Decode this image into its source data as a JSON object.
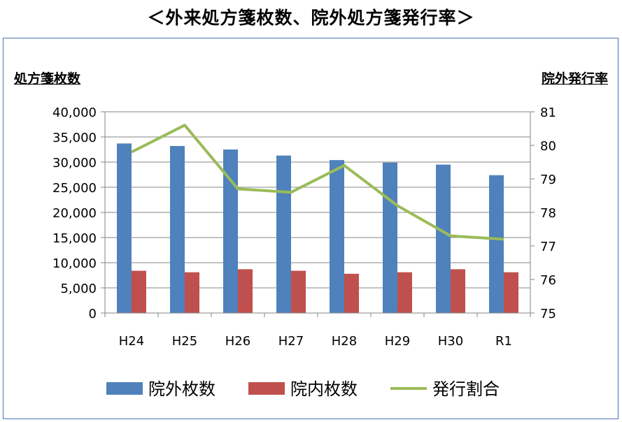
{
  "header": {
    "title": "＜外来処方箋枚数、院外処方箋発行率＞"
  },
  "chart_data": {
    "type": "bar",
    "categories": [
      "H24",
      "H25",
      "H26",
      "H27",
      "H28",
      "H29",
      "H30",
      "R1"
    ],
    "ylabel": "処方箋枚数",
    "y2label": "院外発行率",
    "ylim": [
      0,
      40000
    ],
    "y2lim": [
      75,
      81
    ],
    "yticks": [
      "0",
      "5,000",
      "10,000",
      "15,000",
      "20,000",
      "25,000",
      "30,000",
      "35,000",
      "40,000"
    ],
    "y2ticks": [
      "75",
      "76",
      "77",
      "78",
      "79",
      "80",
      "81"
    ],
    "grid": true,
    "legend_position": "bottom",
    "series": [
      {
        "name": "院外枚数",
        "type": "bar",
        "axis": "left",
        "color": "#4f81bd",
        "values": [
          33700,
          33200,
          32500,
          31300,
          30400,
          29900,
          29500,
          27400
        ]
      },
      {
        "name": "院内枚数",
        "type": "bar",
        "axis": "left",
        "color": "#c0504d",
        "values": [
          8400,
          8100,
          8700,
          8400,
          7800,
          8100,
          8700,
          8100
        ]
      },
      {
        "name": "発行割合",
        "type": "line",
        "axis": "right",
        "color": "#9bbb59",
        "values": [
          79.8,
          80.6,
          78.7,
          78.6,
          79.4,
          78.2,
          77.3,
          77.2
        ]
      }
    ]
  }
}
